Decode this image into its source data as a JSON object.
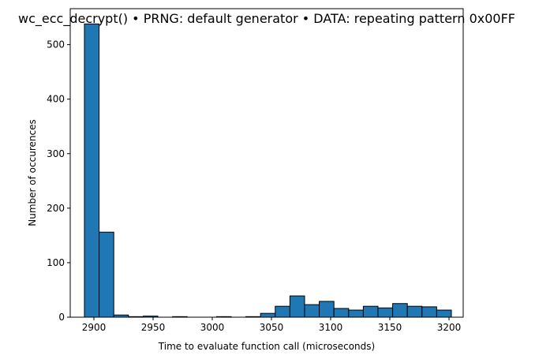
{
  "chart_data": {
    "type": "bar",
    "title": "wc_ecc_decrypt() • PRNG: default generator • DATA: repeating pattern 0x00FF",
    "xlabel": "Time to evaluate function call (microseconds)",
    "ylabel": "Number of occurences",
    "xlim": [
      2880,
      3212
    ],
    "ylim": [
      0,
      566
    ],
    "xticks": [
      2900,
      2950,
      3000,
      3050,
      3100,
      3150,
      3200
    ],
    "yticks": [
      0,
      100,
      200,
      300,
      400,
      500
    ],
    "bin_edges": [
      2892.0,
      2904.4,
      2916.8,
      2929.2,
      2941.6,
      2954.0,
      2966.4,
      2978.8,
      2991.2,
      3003.6,
      3016.0,
      3028.4,
      3040.8,
      3053.2,
      3065.6,
      3078.0,
      3090.4,
      3102.8,
      3115.2,
      3127.6,
      3140.0,
      3152.4,
      3164.8,
      3177.2,
      3189.6,
      3202.0
    ],
    "bin_centers": [
      2898.2,
      2910.6,
      2923.0,
      2935.4,
      2947.8,
      2960.2,
      2972.6,
      2985.0,
      2997.4,
      3009.8,
      3022.2,
      3034.6,
      3047.0,
      3059.4,
      3071.8,
      3084.2,
      3096.6,
      3109.0,
      3121.4,
      3133.8,
      3146.2,
      3158.6,
      3171.0,
      3183.4,
      3195.8
    ],
    "values": [
      538,
      156,
      4,
      1,
      2,
      0,
      1,
      0,
      0,
      1,
      0,
      1,
      7,
      20,
      39,
      23,
      29,
      16,
      13,
      20,
      17,
      25,
      20,
      19,
      13
    ],
    "colors": {
      "bar_fill": "#1f77b4",
      "bar_edge": "#000000",
      "axes": "#000000"
    },
    "grid": false,
    "legend": "none"
  }
}
